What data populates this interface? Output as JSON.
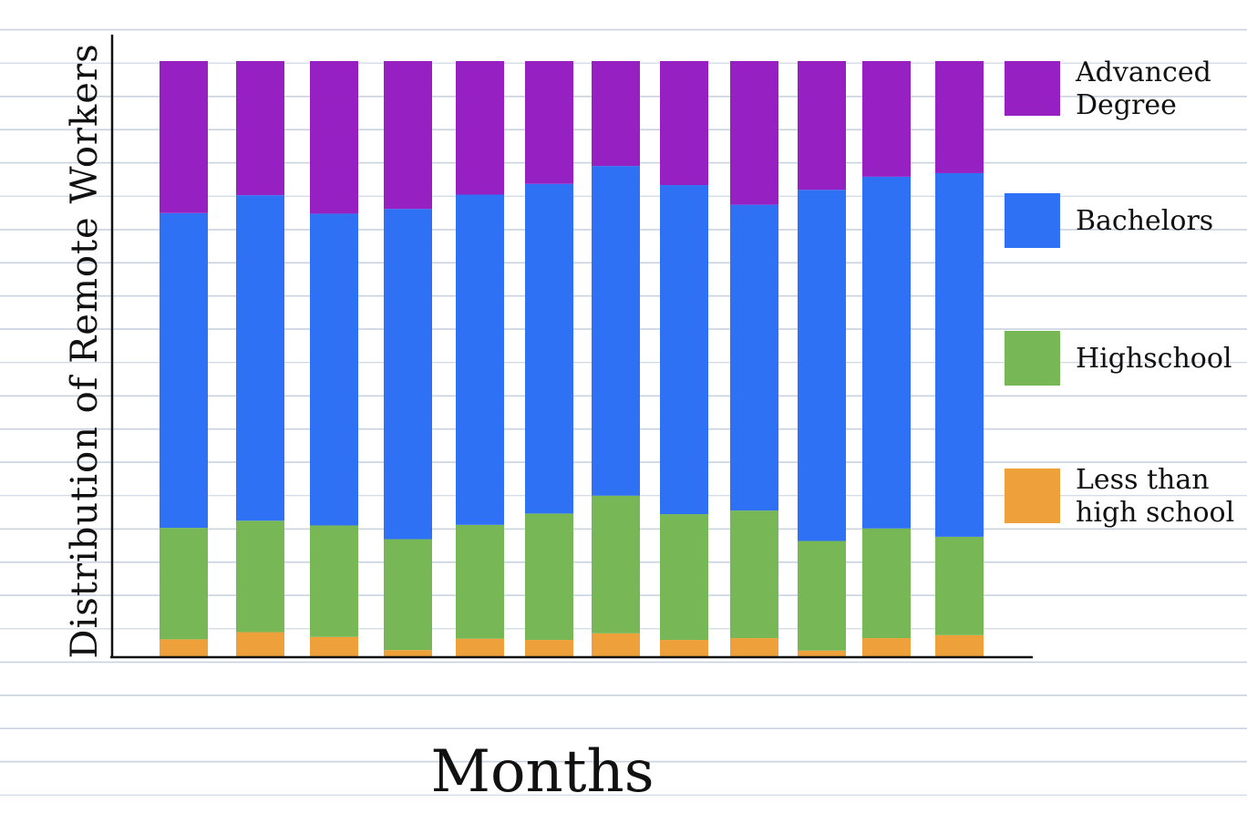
{
  "chart_data": {
    "type": "bar",
    "stacked": true,
    "xlabel": "Months",
    "ylabel": "Distribution of Remote Workers",
    "categories": [
      "",
      "",
      "",
      "",
      "",
      "",
      "",
      "",
      "",
      "",
      "",
      ""
    ],
    "ylim": [
      0,
      100
    ],
    "grid": false,
    "legend_position": "right",
    "series": [
      {
        "name": "Less than high school",
        "color": "#eea13a",
        "values": [
          3.0,
          4.2,
          3.4,
          1.2,
          3.1,
          2.9,
          4.0,
          2.9,
          3.2,
          1.1,
          3.2,
          3.7
        ]
      },
      {
        "name": "Highschool",
        "color": "#78b756",
        "values": [
          18.7,
          18.7,
          18.7,
          18.6,
          19.1,
          21.2,
          23.1,
          21.1,
          21.4,
          18.4,
          18.4,
          16.5
        ]
      },
      {
        "name": "Bachelors",
        "color": "#2f71f5",
        "values": [
          52.8,
          54.6,
          52.3,
          55.4,
          55.4,
          55.3,
          55.3,
          55.2,
          51.3,
          58.9,
          59.0,
          61.0
        ]
      },
      {
        "name": "Advanced Degree",
        "color": "#9720c2",
        "values": [
          25.5,
          22.5,
          25.6,
          24.8,
          22.4,
          20.6,
          17.6,
          20.8,
          24.1,
          21.6,
          19.4,
          18.8
        ]
      }
    ]
  },
  "legend": {
    "items": [
      {
        "label_lines": [
          "Advanced",
          "Degree"
        ],
        "color": "#9720c2"
      },
      {
        "label_lines": [
          "Bachelors"
        ],
        "color": "#2f71f5"
      },
      {
        "label_lines": [
          "Highschool"
        ],
        "color": "#78b756"
      },
      {
        "label_lines": [
          "Less than",
          "high school"
        ],
        "color": "#eea13a"
      }
    ]
  }
}
